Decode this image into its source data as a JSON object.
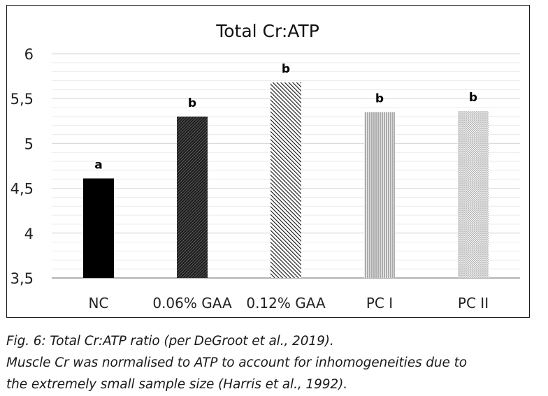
{
  "chart_data": {
    "type": "bar",
    "title": "Total Cr:ATP",
    "xlabel": "",
    "ylabel": "",
    "ylim": [
      3.5,
      6
    ],
    "yticks": [
      3.5,
      4,
      4.5,
      5,
      5.5,
      6
    ],
    "ytick_labels": [
      "3,5",
      "4",
      "4,5",
      "5",
      "5,5",
      "6"
    ],
    "minor_grid_step": 0.1,
    "categories": [
      "NC",
      "0.06% GAA",
      "0.12% GAA",
      "PC I",
      "PC II"
    ],
    "values": [
      4.61,
      5.3,
      5.68,
      5.35,
      5.36
    ],
    "significance_labels": [
      "a",
      "b",
      "b",
      "b",
      "b"
    ],
    "bar_patterns": [
      "solid-black",
      "fine-diagonal-dark",
      "wide-diagonal",
      "vertical-lines",
      "fine-dots"
    ]
  },
  "caption": {
    "line1": "Fig. 6: Total Cr:ATP ratio (per DeGroot et al., 2019).",
    "line2": "Muscle Cr was normalised to ATP to account for inhomogeneities due to",
    "line3": "the extremely small sample size (Harris et al., 1992)."
  }
}
